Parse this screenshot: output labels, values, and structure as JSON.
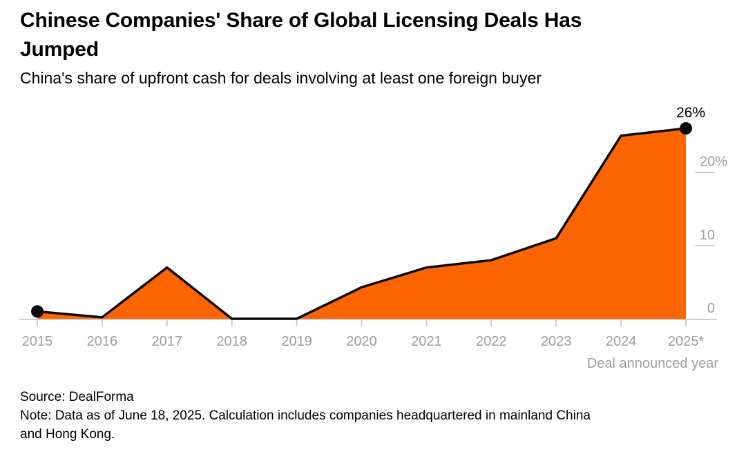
{
  "header": {
    "title_lines": [
      "Chinese Companies' Share of Global Licensing Deals Has",
      "Jumped"
    ],
    "subtitle": "China's share of upfront cash for deals involving at least one foreign buyer"
  },
  "chart_data": {
    "type": "area",
    "title": "Chinese Companies' Share of Global Licensing Deals Has Jumped",
    "subtitle": "China's share of upfront cash for deals involving at least one foreign buyer",
    "categories": [
      "2015",
      "2016",
      "2017",
      "2018",
      "2019",
      "2020",
      "2021",
      "2022",
      "2023",
      "2024",
      "2025*"
    ],
    "values": [
      1,
      0.2,
      7,
      0,
      0,
      4.3,
      7,
      8,
      11,
      25,
      26
    ],
    "unit": "%",
    "xlabel": "Deal announced year",
    "ylabel": "",
    "ylim": [
      0,
      27
    ],
    "yticks": [
      {
        "label": "20%",
        "value": 20
      },
      {
        "label": "10",
        "value": 10
      },
      {
        "label": "0",
        "value": 0
      }
    ],
    "grid": "off",
    "legend": "none",
    "end_annotation": {
      "label": "26%",
      "index": 10
    },
    "marker_indices": [
      0,
      10
    ],
    "colors": {
      "area_fill": "#FD6502",
      "line": "#0A0A0A",
      "marker": "#0A0A0A",
      "axis_text": "#9B9EA1",
      "tick_line": "#CCCCCC",
      "annotation_text": "#000000"
    }
  },
  "footer": {
    "source": "Source: DealForma",
    "note_line1": "Note: Data as of June 18, 2025. Calculation includes companies headquartered in mainland China",
    "note_line2": "and Hong Kong."
  }
}
